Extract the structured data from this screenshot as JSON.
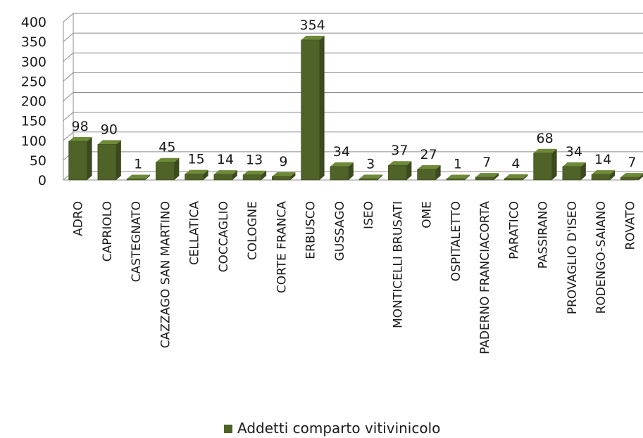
{
  "chart_data": {
    "type": "bar",
    "categories": [
      "ADRO",
      "CAPRIOLO",
      "CASTEGNATO",
      "CAZZAGO SAN MARTINO",
      "CELLATICA",
      "COCCAGLIO",
      "COLOGNE",
      "CORTE FRANCA",
      "ERBUSCO",
      "GUSSAGO",
      "ISEO",
      "MONTICELLI BRUSATI",
      "OME",
      "OSPITALETTO",
      "PADERNO FRANCIACORTA",
      "PARATICO",
      "PASSIRANO",
      "PROVAGLIO D'ISEO",
      "RODENGO-SAIANO",
      "ROVATO"
    ],
    "series": [
      {
        "name": "Addetti comparto vitivinicolo",
        "values": [
          98,
          90,
          1,
          45,
          15,
          14,
          13,
          9,
          354,
          34,
          3,
          37,
          27,
          1,
          7,
          4,
          68,
          34,
          14,
          7
        ]
      }
    ],
    "data_labels": [
      "98",
      "90",
      "1",
      "45",
      "15",
      "14",
      "13",
      "9",
      "354",
      "34",
      "3",
      "37",
      "27",
      "1",
      "7",
      "4",
      "68",
      "34",
      "14",
      "7"
    ],
    "y_ticks": [
      "0",
      "50",
      "100",
      "150",
      "200",
      "250",
      "300",
      "350",
      "400"
    ],
    "ylim": [
      0,
      400
    ],
    "grid": true,
    "legend_position": "bottom",
    "colors": {
      "bar_front": "#4f6228",
      "bar_side": "#3b4a1e",
      "bar_top": "#6e8a38",
      "grid": "#8c8c8c"
    }
  }
}
